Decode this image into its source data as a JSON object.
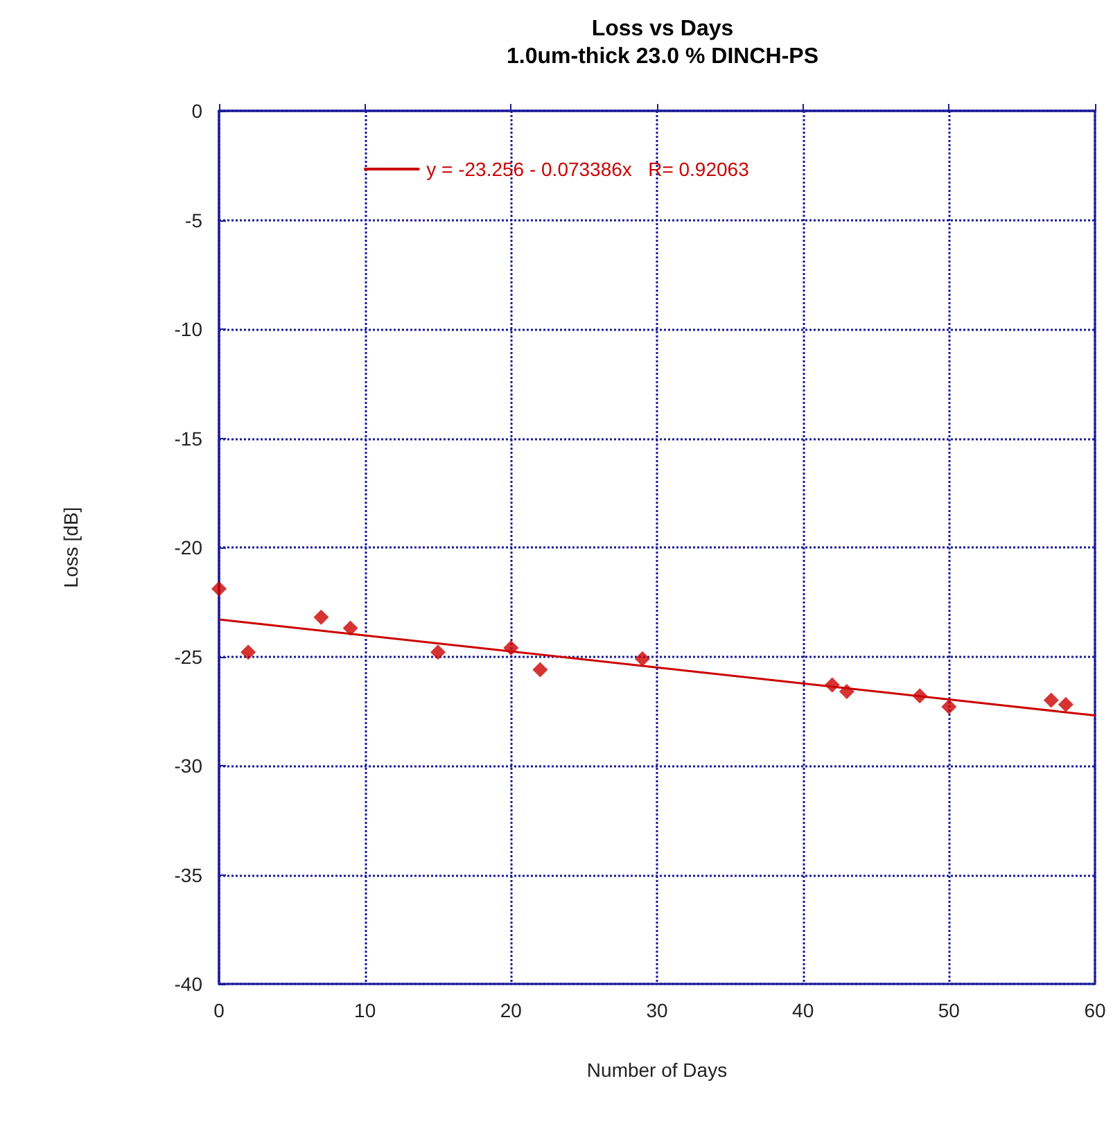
{
  "chart_data": {
    "type": "scatter",
    "title": "Loss vs Days",
    "subtitle": "1.0um-thick 23.0 % DINCH-PS",
    "xlabel": "Number of Days",
    "ylabel": "Loss [dB]",
    "series": [
      {
        "color": "#cc0000",
        "marker": "diamond",
        "x": [
          0,
          2,
          7,
          9,
          15,
          20,
          22,
          29,
          42,
          43,
          48,
          50,
          57,
          58
        ],
        "values": [
          -21.9,
          -24.8,
          -23.2,
          -23.7,
          -24.8,
          -24.6,
          -25.6,
          -25.1,
          -26.3,
          -26.6,
          -26.8,
          -27.3,
          -27.0,
          -27.2
        ]
      },
      {
        "type": "line",
        "name": "y = -23.256 - 0.073386x   R= 0.92063",
        "color": "#cc0000",
        "marker": "none",
        "line_style": "solid",
        "x": [
          0,
          60
        ],
        "values": [
          -23.3,
          -27.7
        ]
      }
    ],
    "xlim": [
      0,
      60
    ],
    "xticks": [
      0,
      10,
      20,
      30,
      40,
      50,
      60
    ],
    "ylim": [
      -40,
      0
    ],
    "yticks": [
      -40,
      -35,
      -30,
      -25,
      -20,
      -15,
      -10,
      -5,
      0
    ],
    "grid": true,
    "legend": "top"
  }
}
